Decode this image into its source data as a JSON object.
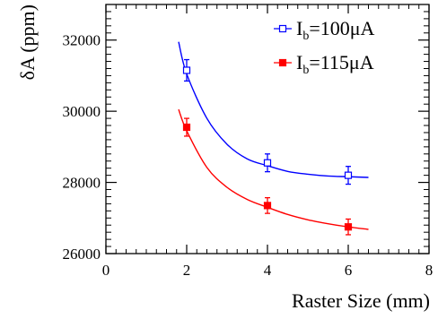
{
  "chart_data": {
    "type": "scatter",
    "xlabel": "Raster Size (mm)",
    "ylabel": "δA (ppm)",
    "xlim": [
      0,
      8
    ],
    "ylim": [
      26000,
      33000
    ],
    "x_ticks": [
      "0",
      "2",
      "4",
      "6",
      "8"
    ],
    "y_ticks": [
      "26000",
      "28000",
      "30000",
      "32000"
    ],
    "grid": false,
    "legend_position": "top-right",
    "series": [
      {
        "name": "I",
        "name_sub": "b",
        "name_rest": "=100μA",
        "color": "#0000ff",
        "marker": "open-square",
        "x": [
          2,
          4,
          6
        ],
        "y": [
          31150,
          28550,
          28200
        ],
        "err": [
          300,
          250,
          250
        ],
        "fit": "exponential-decay",
        "fit_curve": {
          "x": [
            1.8,
            2.0,
            2.5,
            3.0,
            3.5,
            4.0,
            4.5,
            5.0,
            5.5,
            6.0,
            6.5
          ],
          "y": [
            31950,
            31050,
            29800,
            29070,
            28660,
            28470,
            28310,
            28230,
            28180,
            28160,
            28140
          ]
        }
      },
      {
        "name": "I",
        "name_sub": "b",
        "name_rest": "=115μA",
        "color": "#ff0000",
        "marker": "filled-square",
        "x": [
          2,
          4,
          6
        ],
        "y": [
          29550,
          27350,
          26750
        ],
        "err": [
          250,
          220,
          220
        ],
        "fit": "exponential-decay",
        "fit_curve": {
          "x": [
            1.8,
            2.0,
            2.5,
            3.0,
            3.5,
            4.0,
            4.5,
            5.0,
            5.5,
            6.0,
            6.5
          ],
          "y": [
            30050,
            29450,
            28420,
            27860,
            27520,
            27300,
            27100,
            26950,
            26840,
            26750,
            26680
          ]
        }
      }
    ]
  }
}
